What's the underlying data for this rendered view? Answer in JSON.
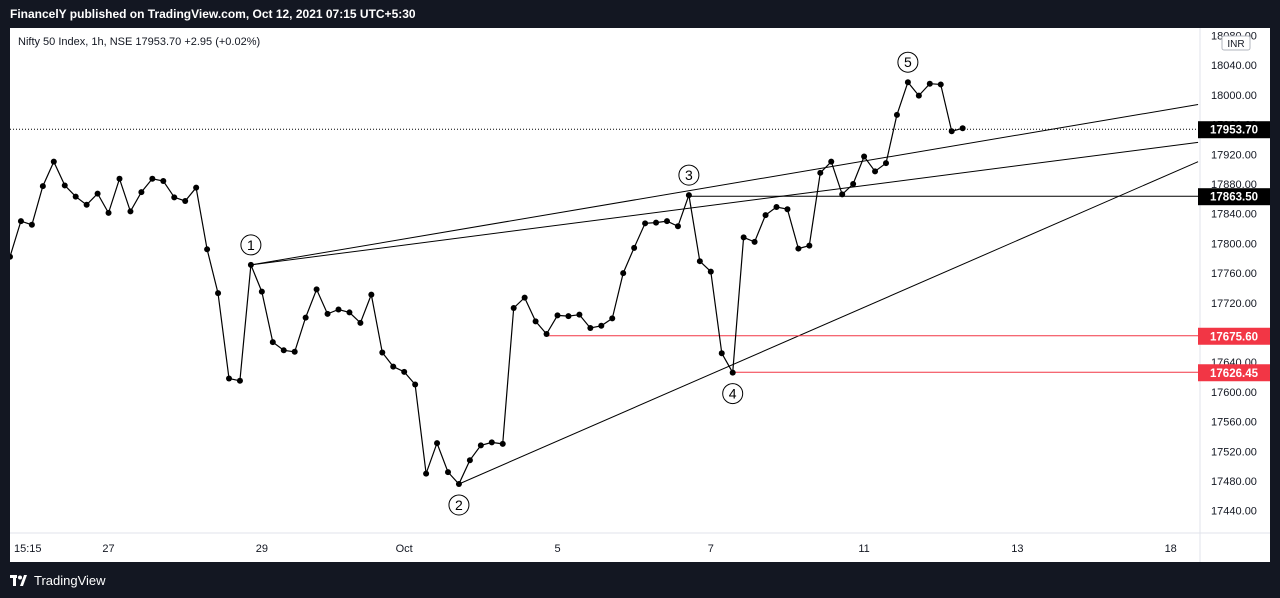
{
  "header": {
    "published": "FinancelY published on TradingView.com, Oct 12, 2021 07:15 UTC+5:30"
  },
  "footer": {
    "brand": "TradingView",
    "logo_icon": "tradingview-logo-icon"
  },
  "chart_data": {
    "type": "line",
    "title": "Nifty 50 Index, 1h, NSE  17953.70  +2.95 (+0.02%)",
    "currency_label": "INR",
    "x_tick_labels": [
      {
        "label": "15:15",
        "i": 0
      },
      {
        "label": "27",
        "i": 9
      },
      {
        "label": "29",
        "i": 23
      },
      {
        "label": "Oct",
        "i": 36
      },
      {
        "label": "5",
        "i": 50
      },
      {
        "label": "7",
        "i": 64
      },
      {
        "label": "11",
        "i": 78
      },
      {
        "label": "13",
        "i": 92
      },
      {
        "label": "18",
        "i": 106
      }
    ],
    "ylim": [
      17410,
      18090
    ],
    "y_ticks": [
      17440,
      17480,
      17520,
      17560,
      17600,
      17640,
      17680,
      17720,
      17760,
      17800,
      17840,
      17880,
      17920,
      17960,
      18000,
      18040,
      18080
    ],
    "series": [
      {
        "values": [
          17782,
          17830,
          17825,
          17877,
          17910,
          17878,
          17863,
          17852,
          17867,
          17841,
          17887,
          17843,
          17869,
          17887,
          17884,
          17862,
          17857,
          17875,
          17792,
          17733,
          17618,
          17615,
          17771,
          17735,
          17667,
          17656,
          17654,
          17700,
          17738,
          17705,
          17711,
          17707,
          17693,
          17731,
          17653,
          17634,
          17627,
          17610,
          17490,
          17531,
          17492,
          17476,
          17508,
          17528,
          17532,
          17530,
          17713,
          17727,
          17695,
          17678,
          17703,
          17702,
          17704,
          17686,
          17689,
          17699,
          17760,
          17794,
          17827,
          17828,
          17830,
          17823,
          17865,
          17776,
          17762,
          17652,
          17626,
          17808,
          17802,
          17838,
          17849,
          17846,
          17793,
          17797,
          17895,
          17910,
          17866,
          17880,
          17917,
          17897,
          17908,
          17973,
          18017,
          17999,
          18015,
          18014,
          17951,
          17955
        ]
      }
    ],
    "wave_labels": [
      {
        "label": "1",
        "i": 22,
        "price": 17771,
        "pos": "above"
      },
      {
        "label": "2",
        "i": 41,
        "price": 17476,
        "pos": "below"
      },
      {
        "label": "3",
        "i": 62,
        "price": 17865,
        "pos": "above"
      },
      {
        "label": "4",
        "i": 66,
        "price": 17626,
        "pos": "below"
      },
      {
        "label": "5",
        "i": 82,
        "price": 18017,
        "pos": "above"
      }
    ],
    "trendlines": [
      {
        "from": {
          "i": 22,
          "price": 17771
        },
        "to": {
          "i": 108.5,
          "price": 17987
        }
      },
      {
        "from": {
          "i": 22,
          "price": 17771
        },
        "to": {
          "i": 108.5,
          "price": 17936
        }
      },
      {
        "from": {
          "i": 41,
          "price": 17476
        },
        "to": {
          "i": 108.5,
          "price": 17910
        }
      }
    ],
    "horizontal_lines": [
      {
        "price": 17863.5,
        "label": "17863.50",
        "color": "#000000",
        "start_i": 62
      },
      {
        "price": 17675.6,
        "label": "17675.60",
        "color": "#f23645",
        "start_i": 49
      },
      {
        "price": 17626.45,
        "label": "17626.45",
        "color": "#f23645",
        "start_i": 66
      }
    ],
    "last_price": {
      "price": 17953.7,
      "label": "17953.70",
      "color": "#000000"
    },
    "colors": {
      "line": "#000000",
      "axis_text": "#131722",
      "red": "#f23645",
      "grid_separator": "#e0e3eb"
    }
  }
}
